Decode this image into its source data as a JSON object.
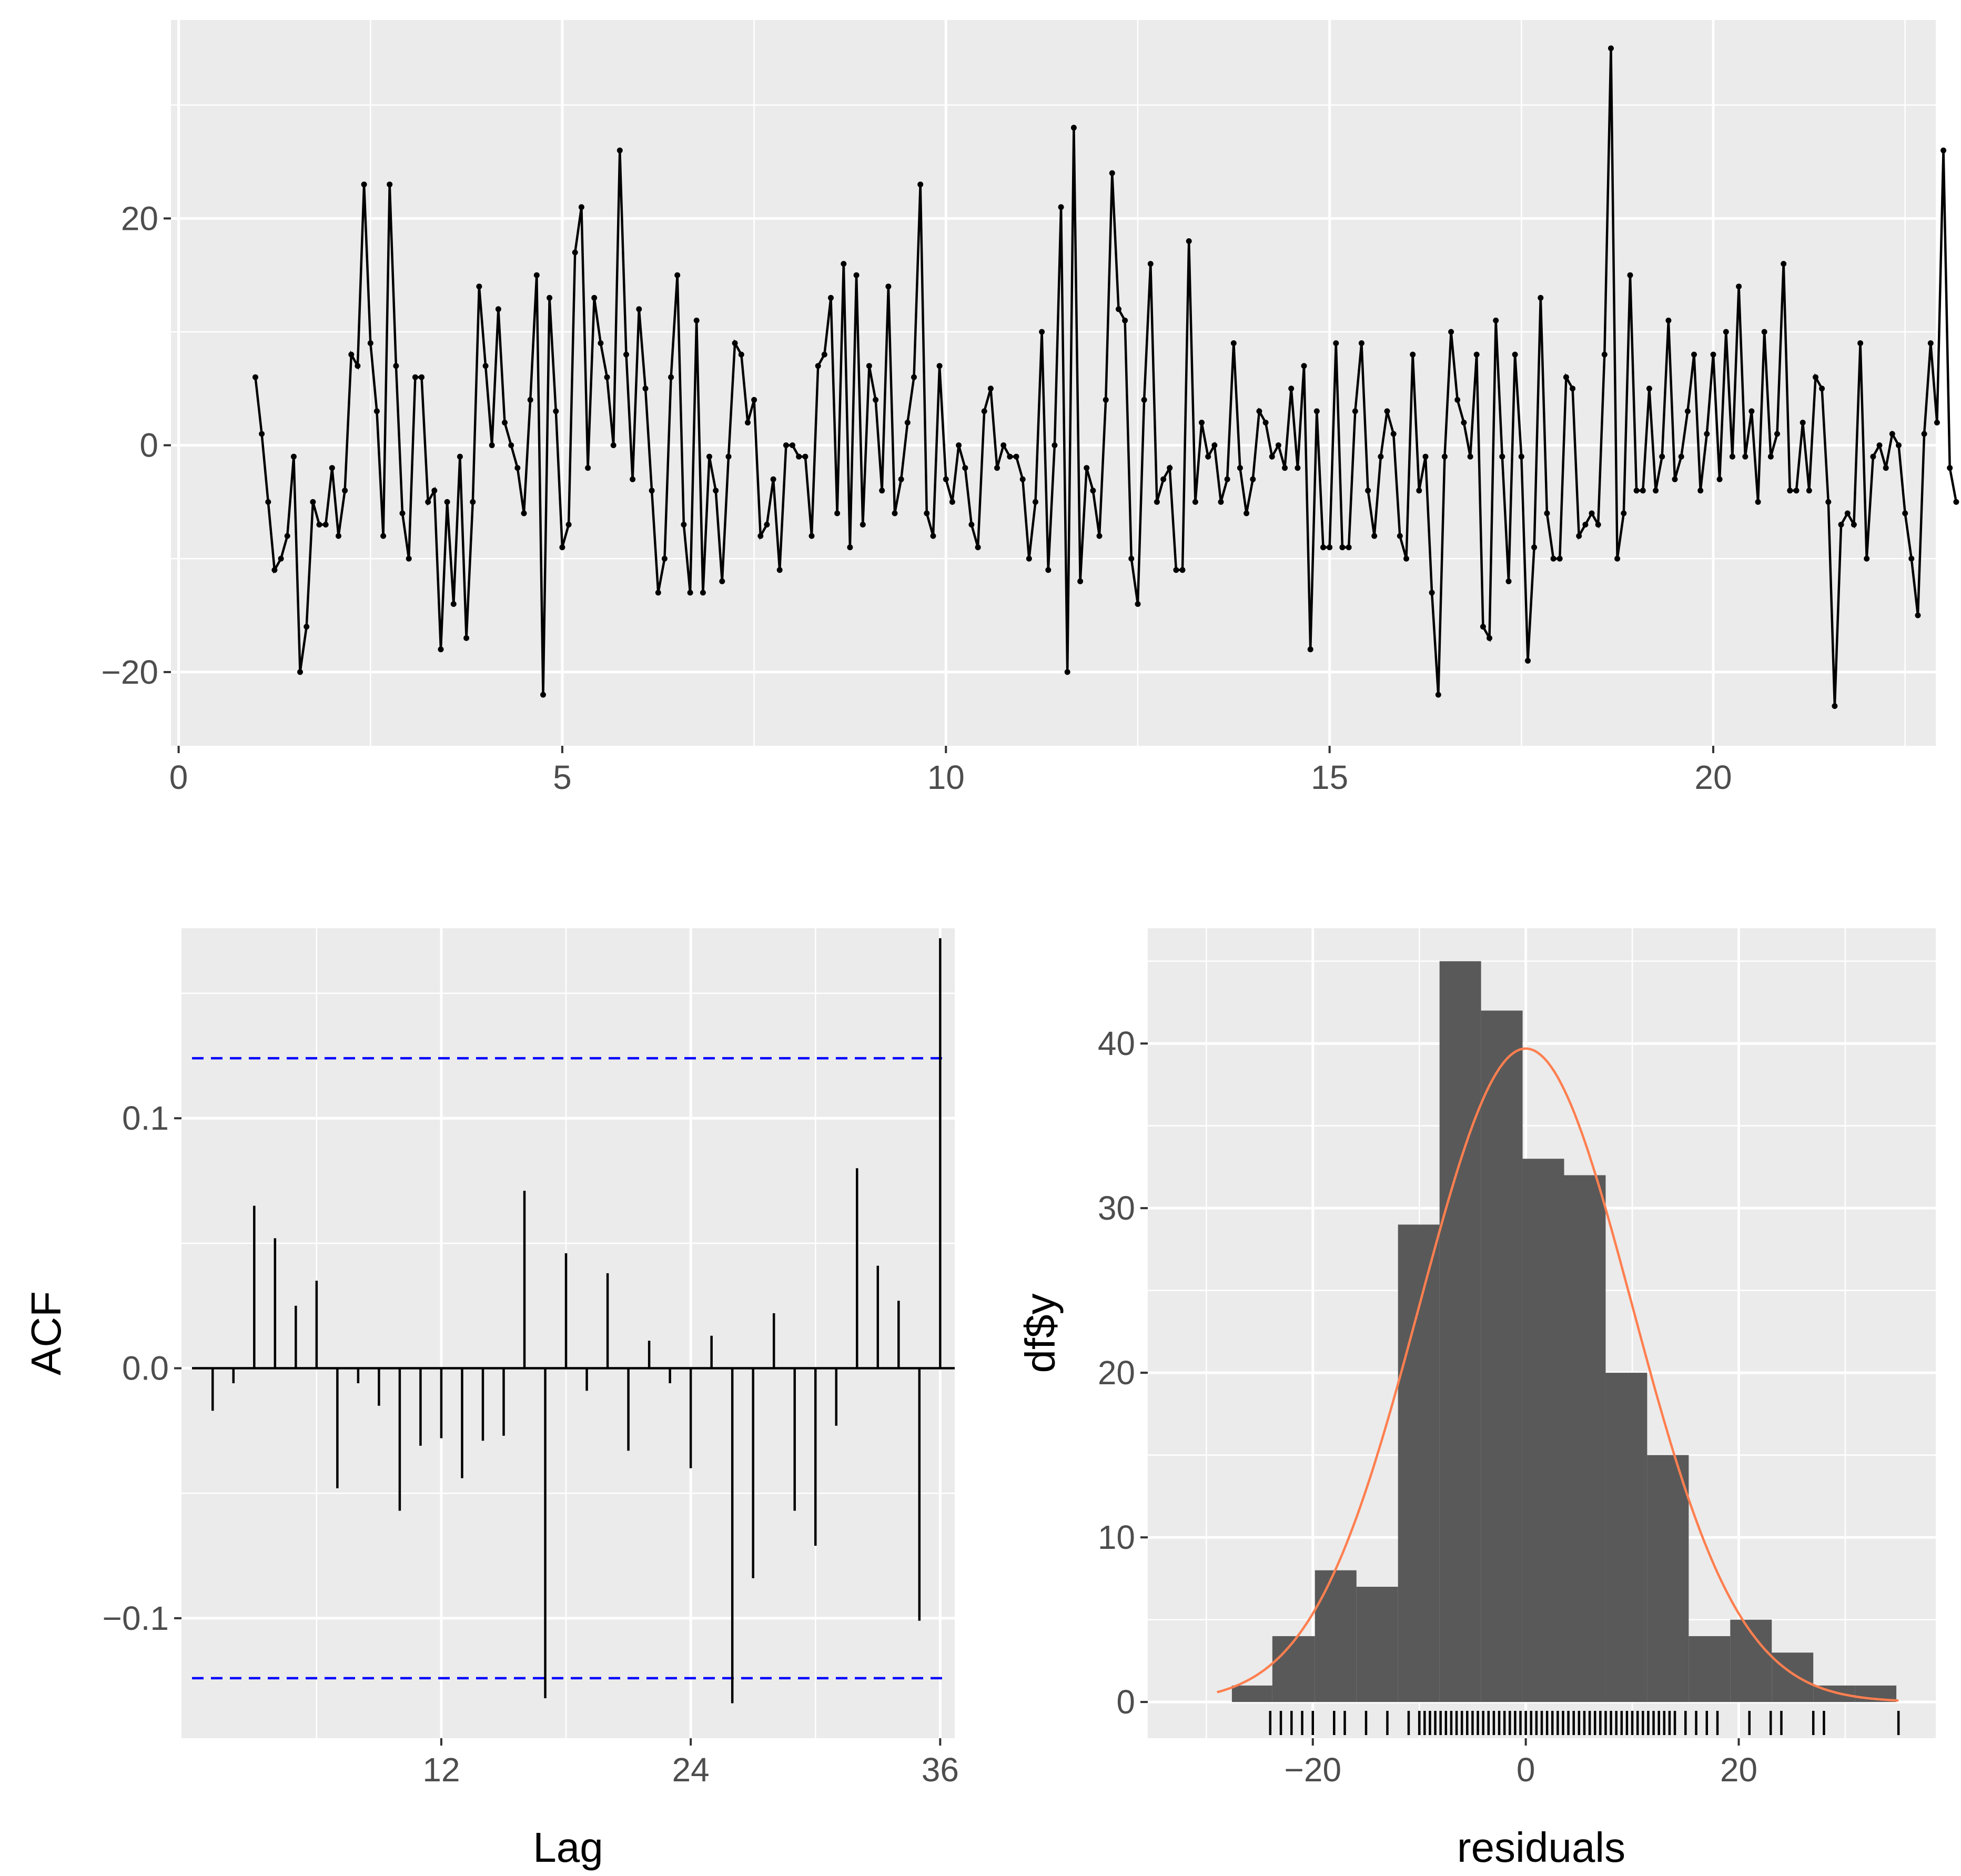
{
  "chart_data": [
    {
      "id": "residual-series",
      "type": "line",
      "title": "",
      "xlabel": "",
      "ylabel": "",
      "xlim": [
        -0.1,
        22.9
      ],
      "ylim": [
        -26.5,
        37.5
      ],
      "x_ticks": [
        "0",
        "5",
        "10",
        "15",
        "20"
      ],
      "x_tick_values": [
        0,
        5,
        10,
        15,
        20
      ],
      "y_ticks": [
        "-20",
        "0",
        "20"
      ],
      "y_tick_values": [
        -20,
        0,
        20
      ],
      "start": 1,
      "frequency": 12,
      "values": [
        6,
        1,
        -5,
        -11,
        -10,
        -8,
        -1,
        -20,
        -16,
        -5,
        -7,
        -7,
        -2,
        -8,
        -4,
        8,
        7,
        23,
        9,
        3,
        -8,
        23,
        7,
        -6,
        -10,
        6,
        6,
        -5,
        -4,
        -18,
        -5,
        -14,
        -1,
        -17,
        -5,
        14,
        7,
        0,
        12,
        2,
        0,
        -2,
        -6,
        4,
        15,
        -22,
        13,
        3,
        -9,
        -7,
        17,
        21,
        -2,
        13,
        9,
        6,
        0,
        26,
        8,
        -3,
        12,
        5,
        -4,
        -13,
        -10,
        6,
        15,
        -7,
        -13,
        11,
        -13,
        -1,
        -4,
        -12,
        -1,
        9,
        8,
        2,
        4,
        -8,
        -7,
        -3,
        -11,
        0,
        0,
        -1,
        -1,
        -8,
        7,
        8,
        13,
        -6,
        16,
        -9,
        15,
        -7,
        7,
        4,
        -4,
        14,
        -6,
        -3,
        2,
        6,
        23,
        -6,
        -8,
        7,
        -3,
        -5,
        0,
        -2,
        -7,
        -9,
        3,
        5,
        -2,
        0,
        -1,
        -1,
        -3,
        -10,
        -5,
        10,
        -11,
        0,
        21,
        -20,
        28,
        -12,
        -2,
        -4,
        -8,
        4,
        24,
        12,
        11,
        -10,
        -14,
        4,
        16,
        -5,
        -3,
        -2,
        -11,
        -11,
        18,
        -5,
        2,
        -1,
        0,
        -5,
        -3,
        9,
        -2,
        -6,
        -3,
        3,
        2,
        -1,
        0,
        -2,
        5,
        -2,
        7,
        -18,
        3,
        -9,
        -9,
        9,
        -9,
        -9,
        3,
        9,
        -4,
        -8,
        -1,
        3,
        1,
        -8,
        -10,
        8,
        -4,
        -1,
        -13,
        -22,
        -1,
        10,
        4,
        2,
        -1,
        8,
        -16,
        -17,
        11,
        -1,
        -12,
        8,
        -1,
        -19,
        -9,
        13,
        -6,
        -10,
        -10,
        6,
        5,
        -8,
        -7,
        -6,
        -7,
        8,
        35,
        -10,
        -6,
        15,
        -4,
        -4,
        5,
        -4,
        -1,
        11,
        -3,
        -1,
        3,
        8,
        -4,
        1,
        8,
        -3,
        10,
        -1,
        14,
        -1,
        3,
        -5,
        10,
        -1,
        1,
        16,
        -4,
        -4,
        2,
        -4,
        6,
        5,
        -5,
        -23,
        -7,
        -6,
        -7,
        9,
        -10,
        -1,
        0,
        -2,
        1,
        0,
        -6,
        -10,
        -15,
        1,
        9,
        2,
        26,
        -2,
        -5
      ]
    },
    {
      "id": "acf",
      "type": "bar",
      "title": "",
      "xlabel": "Lag",
      "ylabel": "ACF",
      "xlim": [
        -0.5,
        36.7
      ],
      "ylim": [
        -0.148,
        0.176
      ],
      "x_ticks": [
        "12",
        "24",
        "36"
      ],
      "x_tick_values": [
        12,
        24,
        36
      ],
      "y_ticks": [
        "-0.1",
        "0.0",
        "0.1"
      ],
      "y_tick_values": [
        -0.1,
        0,
        0.1
      ],
      "lags": [
        1,
        2,
        3,
        4,
        5,
        6,
        7,
        8,
        9,
        10,
        11,
        12,
        13,
        14,
        15,
        16,
        17,
        18,
        19,
        20,
        21,
        22,
        23,
        24,
        25,
        26,
        27,
        28,
        29,
        30,
        31,
        32,
        33,
        34,
        35,
        36
      ],
      "values": [
        -0.017,
        -0.006,
        0.065,
        0.052,
        0.025,
        0.035,
        -0.048,
        -0.006,
        -0.015,
        -0.057,
        -0.031,
        -0.028,
        -0.044,
        -0.029,
        -0.027,
        0.071,
        -0.132,
        0.046,
        -0.009,
        0.038,
        -0.033,
        0.011,
        -0.006,
        -0.04,
        0.013,
        -0.134,
        -0.084,
        0.022,
        -0.057,
        -0.071,
        -0.023,
        0.08,
        0.041,
        0.027,
        -0.101,
        0.172
      ],
      "ci": [
        -0.124,
        0.124
      ]
    },
    {
      "id": "residual-histogram",
      "type": "bar",
      "title": "",
      "xlabel": "residuals",
      "ylabel": "df$y",
      "xlim": [
        -35.5,
        38.5
      ],
      "ylim": [
        -2.2,
        47
      ],
      "x_ticks": [
        "-20",
        "0",
        "20"
      ],
      "x_tick_values": [
        -20,
        0,
        20
      ],
      "y_ticks": [
        "0",
        "10",
        "20",
        "30",
        "40"
      ],
      "y_tick_values": [
        0,
        10,
        20,
        30,
        40
      ],
      "bin_edges": [
        -27.6,
        -23.8,
        -19.8,
        -15.9,
        -12.0,
        -8.1,
        -4.2,
        -0.3,
        3.6,
        7.5,
        11.4,
        15.3,
        19.2,
        23.1,
        27.0,
        30.9,
        34.8
      ],
      "counts": [
        1,
        4,
        8,
        7,
        29,
        45,
        42,
        33,
        32,
        20,
        15,
        4,
        5,
        3,
        1,
        1
      ],
      "density_mean": 0,
      "density_sd": 10,
      "density_scale": 995,
      "density_range": [
        -29,
        35
      ],
      "rug": [
        -24,
        -23,
        -22,
        -21,
        -20,
        -18,
        -17,
        -15,
        -13,
        -11,
        -10,
        -9.5,
        -9,
        -8.5,
        -8,
        -7.5,
        -7,
        -6.5,
        -6,
        -5.5,
        -5,
        -4.5,
        -4,
        -3.5,
        -3,
        -2.5,
        -2,
        -1.5,
        -1,
        -0.5,
        0,
        0.5,
        1,
        1.5,
        2,
        2.5,
        3,
        3.5,
        4,
        4.5,
        5,
        5.5,
        6,
        6.5,
        7,
        7.5,
        8,
        8.5,
        9,
        9.5,
        10,
        10.5,
        11,
        11.5,
        12,
        12.5,
        13,
        13.5,
        14,
        15,
        16,
        17,
        18,
        21,
        23,
        24,
        27,
        28,
        35
      ]
    }
  ]
}
